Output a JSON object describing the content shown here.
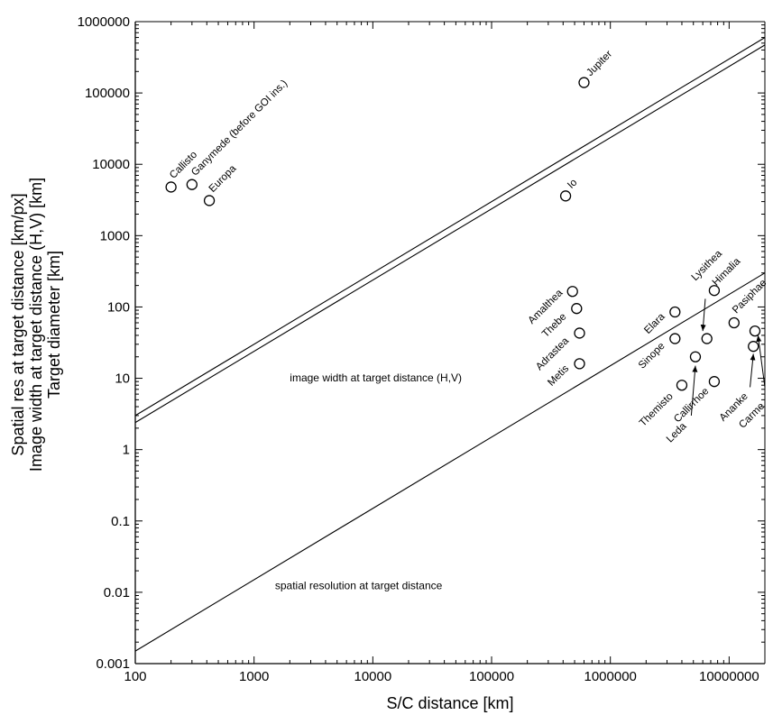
{
  "chart_data": {
    "type": "scatter",
    "xscale": "log",
    "yscale": "log",
    "xlim": [
      100,
      20000000
    ],
    "ylim": [
      0.001,
      1000000
    ],
    "grid": false,
    "xlabel": "S/C distance [km]",
    "ylabel_lines": [
      "Spatial res at target distance [km/px]",
      "Image width at target distance (H,V) [km]",
      "Target diameter [km]"
    ],
    "x_ticks": [
      {
        "value": 100,
        "label": "100"
      },
      {
        "value": 1000,
        "label": "1000"
      },
      {
        "value": 10000,
        "label": "10000"
      },
      {
        "value": 100000,
        "label": "100000"
      },
      {
        "value": 1000000,
        "label": "1000000"
      },
      {
        "value": 10000000,
        "label": "10000000"
      }
    ],
    "y_ticks": [
      {
        "value": 0.001,
        "label": "0.001"
      },
      {
        "value": 0.01,
        "label": "0.01"
      },
      {
        "value": 0.1,
        "label": "0.1"
      },
      {
        "value": 1,
        "label": "1"
      },
      {
        "value": 10,
        "label": "10"
      },
      {
        "value": 100,
        "label": "100"
      },
      {
        "value": 1000,
        "label": "1000"
      },
      {
        "value": 10000,
        "label": "10000"
      },
      {
        "value": 100000,
        "label": "100000"
      },
      {
        "value": 1000000,
        "label": "1000000"
      }
    ],
    "lines": [
      {
        "id": "image-width-h",
        "x": [
          100,
          20000000
        ],
        "y": [
          3.0,
          600000
        ]
      },
      {
        "id": "image-width-v",
        "x": [
          100,
          20000000
        ],
        "y": [
          2.4,
          470000
        ]
      },
      {
        "id": "spatial-resolution",
        "x": [
          100,
          20000000
        ],
        "y": [
          0.0015,
          300
        ]
      }
    ],
    "curve_labels": [
      {
        "text": "image width at target distance (H,V)",
        "x": 2000,
        "y": 9
      },
      {
        "text": "spatial resolution at target distance",
        "x": 1500,
        "y": 0.011
      }
    ],
    "points": [
      {
        "name": "Callisto",
        "x": 200,
        "y": 4800,
        "label_pos": "up-right"
      },
      {
        "name": "Ganymede (before GOI ins.)",
        "x": 300,
        "y": 5200,
        "label_pos": "up-right"
      },
      {
        "name": "Europa",
        "x": 420,
        "y": 3100,
        "label_pos": "up-right"
      },
      {
        "name": "Jupiter",
        "x": 600000,
        "y": 140000,
        "label_pos": "up-right"
      },
      {
        "name": "Io",
        "x": 420000,
        "y": 3600,
        "label_pos": "up-right"
      },
      {
        "name": "Amalthea",
        "x": 480000,
        "y": 165,
        "label_pos": "down-left"
      },
      {
        "name": "Thebe",
        "x": 520000,
        "y": 95,
        "label_pos": "down-left"
      },
      {
        "name": "Adrastea",
        "x": 550000,
        "y": 43,
        "label_pos": "down-left"
      },
      {
        "name": "Metis",
        "x": 550000,
        "y": 16,
        "label_pos": "down-left"
      },
      {
        "name": "Elara",
        "x": 3500000,
        "y": 85,
        "label_pos": "down-left"
      },
      {
        "name": "Sinope",
        "x": 3500000,
        "y": 36,
        "label_pos": "down-left"
      },
      {
        "name": "Themisto",
        "x": 4000000,
        "y": 8,
        "label_pos": "down-left"
      },
      {
        "name": "Leda",
        "x": 5200000,
        "y": 20,
        "label_pos": "arrow"
      },
      {
        "name": "Lysithea",
        "x": 6500000,
        "y": 36,
        "label_pos": "arrow"
      },
      {
        "name": "Himalia",
        "x": 7500000,
        "y": 170,
        "label_pos": "up-right"
      },
      {
        "name": "Callirrhoe",
        "x": 7500000,
        "y": 9,
        "label_pos": "down-left"
      },
      {
        "name": "Pasiphae",
        "x": 11000000,
        "y": 60,
        "label_pos": "up-right"
      },
      {
        "name": "Ananke",
        "x": 16000000,
        "y": 28,
        "label_pos": "arrow"
      },
      {
        "name": "Carme",
        "x": 16500000,
        "y": 46,
        "label_pos": "arrow"
      }
    ],
    "labels": [
      {
        "text": "Callisto",
        "x": 210,
        "y": 6200,
        "rotate": -45,
        "anchor": "start"
      },
      {
        "text": "Ganymede (before GOI ins.)",
        "x": 320,
        "y": 6800,
        "rotate": -45,
        "anchor": "start"
      },
      {
        "text": "Europa",
        "x": 450,
        "y": 4000,
        "rotate": -45,
        "anchor": "start"
      },
      {
        "text": "Jupiter",
        "x": 680000,
        "y": 170000,
        "rotate": -45,
        "anchor": "start"
      },
      {
        "text": "Io",
        "x": 470000,
        "y": 4500,
        "rotate": -45,
        "anchor": "start"
      },
      {
        "text": "Amalthea",
        "x": 400000,
        "y": 155,
        "rotate": -45,
        "anchor": "end"
      },
      {
        "text": "Thebe",
        "x": 430000,
        "y": 72,
        "rotate": -45,
        "anchor": "end"
      },
      {
        "text": "Adrastea",
        "x": 450000,
        "y": 33,
        "rotate": -45,
        "anchor": "end"
      },
      {
        "text": "Metis",
        "x": 450000,
        "y": 13.5,
        "rotate": -45,
        "anchor": "end"
      },
      {
        "text": "Elara",
        "x": 2900000,
        "y": 72,
        "rotate": -45,
        "anchor": "end"
      },
      {
        "text": "Sinope",
        "x": 2900000,
        "y": 28,
        "rotate": -45,
        "anchor": "end"
      },
      {
        "text": "Themisto",
        "x": 3400000,
        "y": 5.5,
        "rotate": -45,
        "anchor": "end"
      },
      {
        "text": "Leda",
        "x": 4400000,
        "y": 2.1,
        "rotate": -45,
        "anchor": "end"
      },
      {
        "text": "Lysithea",
        "x": 5200000,
        "y": 230,
        "rotate": -45,
        "anchor": "start"
      },
      {
        "text": "Himalia",
        "x": 7800000,
        "y": 195,
        "rotate": -45,
        "anchor": "start"
      },
      {
        "text": "Callirrhoe",
        "x": 6800000,
        "y": 6.5,
        "rotate": -45,
        "anchor": "end"
      },
      {
        "text": "Pasiphae",
        "x": 11500000,
        "y": 80,
        "rotate": -45,
        "anchor": "start"
      },
      {
        "text": "Ananke",
        "x": 14500000,
        "y": 5.5,
        "rotate": -45,
        "anchor": "end"
      },
      {
        "text": "Carme",
        "x": 20000000,
        "y": 4,
        "rotate": -45,
        "anchor": "end"
      }
    ],
    "arrows": [
      {
        "x1": 6300000,
        "y1": 130,
        "x2": 6000000,
        "y2": 46
      },
      {
        "x1": 4800000,
        "y1": 3.0,
        "x2": 5200000,
        "y2": 15
      },
      {
        "x1": 15000000,
        "y1": 7.5,
        "x2": 16000000,
        "y2": 22
      },
      {
        "x1": 20000000,
        "y1": 7.5,
        "x2": 17500000,
        "y2": 40
      }
    ]
  }
}
